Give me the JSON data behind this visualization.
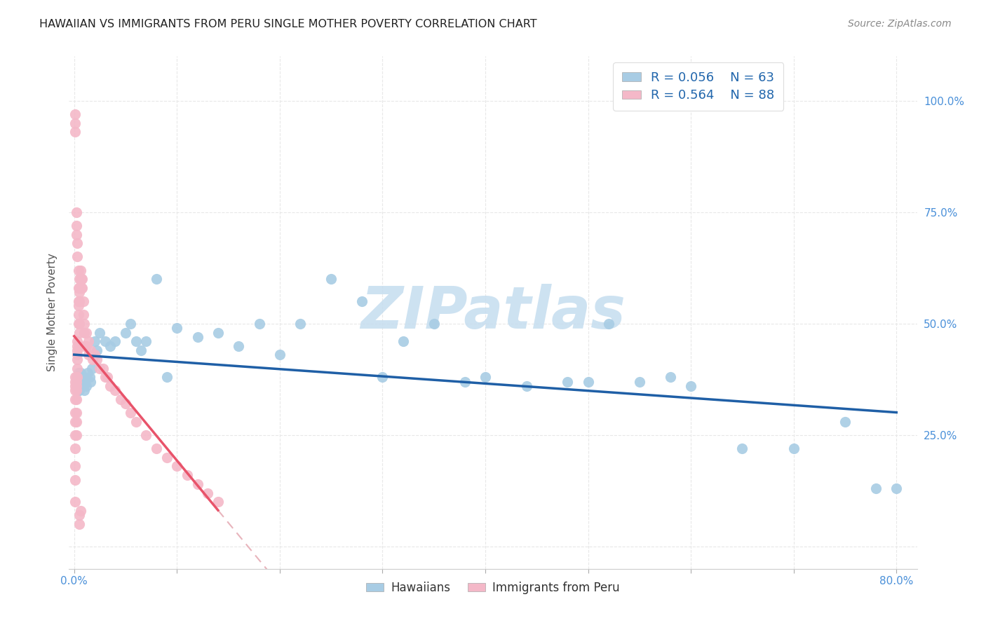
{
  "title": "HAWAIIAN VS IMMIGRANTS FROM PERU SINGLE MOTHER POVERTY CORRELATION CHART",
  "source": "Source: ZipAtlas.com",
  "ylabel": "Single Mother Poverty",
  "xlim": [
    -0.005,
    0.82
  ],
  "ylim": [
    -0.05,
    1.1
  ],
  "hawaiian_R": 0.056,
  "hawaiian_N": 63,
  "peru_R": 0.564,
  "peru_N": 88,
  "blue_scatter_color": "#a8cce4",
  "pink_scatter_color": "#f4b8c8",
  "blue_line_color": "#1f5fa6",
  "pink_line_color": "#e8536a",
  "pink_dash_color": "#e8b4bc",
  "watermark_color": "#c5ddef",
  "ytick_color": "#4a90d9",
  "xtick_color": "#4a90d9",
  "grid_color": "#e8e8e8",
  "hawaiian_x": [
    0.003,
    0.003,
    0.003,
    0.004,
    0.004,
    0.005,
    0.005,
    0.005,
    0.005,
    0.006,
    0.006,
    0.007,
    0.007,
    0.008,
    0.008,
    0.009,
    0.01,
    0.01,
    0.01,
    0.012,
    0.013,
    0.015,
    0.016,
    0.017,
    0.02,
    0.022,
    0.025,
    0.03,
    0.035,
    0.04,
    0.05,
    0.055,
    0.06,
    0.065,
    0.07,
    0.08,
    0.09,
    0.1,
    0.12,
    0.14,
    0.16,
    0.18,
    0.2,
    0.22,
    0.25,
    0.28,
    0.3,
    0.32,
    0.35,
    0.38,
    0.4,
    0.44,
    0.48,
    0.5,
    0.52,
    0.55,
    0.58,
    0.6,
    0.65,
    0.7,
    0.75,
    0.78,
    0.8
  ],
  "hawaiian_y": [
    0.38,
    0.37,
    0.36,
    0.39,
    0.35,
    0.38,
    0.36,
    0.37,
    0.35,
    0.38,
    0.39,
    0.37,
    0.36,
    0.38,
    0.37,
    0.36,
    0.38,
    0.37,
    0.35,
    0.36,
    0.39,
    0.38,
    0.37,
    0.4,
    0.46,
    0.44,
    0.48,
    0.46,
    0.45,
    0.46,
    0.48,
    0.5,
    0.46,
    0.44,
    0.46,
    0.6,
    0.38,
    0.49,
    0.47,
    0.48,
    0.45,
    0.5,
    0.43,
    0.5,
    0.6,
    0.55,
    0.38,
    0.46,
    0.5,
    0.37,
    0.38,
    0.36,
    0.37,
    0.37,
    0.5,
    0.37,
    0.38,
    0.36,
    0.22,
    0.22,
    0.28,
    0.13,
    0.13
  ],
  "peru_x": [
    0.001,
    0.001,
    0.001,
    0.001,
    0.001,
    0.001,
    0.001,
    0.001,
    0.001,
    0.001,
    0.001,
    0.001,
    0.002,
    0.002,
    0.002,
    0.002,
    0.002,
    0.002,
    0.002,
    0.002,
    0.003,
    0.003,
    0.003,
    0.003,
    0.003,
    0.003,
    0.003,
    0.004,
    0.004,
    0.004,
    0.004,
    0.005,
    0.005,
    0.005,
    0.005,
    0.005,
    0.005,
    0.006,
    0.006,
    0.006,
    0.007,
    0.007,
    0.008,
    0.008,
    0.009,
    0.009,
    0.01,
    0.01,
    0.01,
    0.012,
    0.012,
    0.014,
    0.014,
    0.016,
    0.018,
    0.02,
    0.022,
    0.025,
    0.028,
    0.03,
    0.032,
    0.035,
    0.04,
    0.045,
    0.05,
    0.055,
    0.06,
    0.07,
    0.08,
    0.09,
    0.1,
    0.11,
    0.12,
    0.13,
    0.14,
    0.001,
    0.001,
    0.001,
    0.002,
    0.002,
    0.002,
    0.003,
    0.003,
    0.004,
    0.004,
    0.005,
    0.005,
    0.006
  ],
  "peru_y": [
    0.35,
    0.36,
    0.37,
    0.38,
    0.33,
    0.3,
    0.28,
    0.25,
    0.22,
    0.18,
    0.15,
    0.1,
    0.38,
    0.37,
    0.36,
    0.35,
    0.33,
    0.3,
    0.28,
    0.25,
    0.46,
    0.45,
    0.44,
    0.43,
    0.42,
    0.4,
    0.38,
    0.55,
    0.54,
    0.52,
    0.5,
    0.6,
    0.58,
    0.57,
    0.55,
    0.5,
    0.48,
    0.62,
    0.6,
    0.58,
    0.6,
    0.58,
    0.6,
    0.58,
    0.55,
    0.52,
    0.5,
    0.48,
    0.45,
    0.48,
    0.45,
    0.46,
    0.43,
    0.44,
    0.42,
    0.43,
    0.42,
    0.4,
    0.4,
    0.38,
    0.38,
    0.36,
    0.35,
    0.33,
    0.32,
    0.3,
    0.28,
    0.25,
    0.22,
    0.2,
    0.18,
    0.16,
    0.14,
    0.12,
    0.1,
    0.97,
    0.95,
    0.93,
    0.75,
    0.72,
    0.7,
    0.68,
    0.65,
    0.62,
    0.58,
    0.05,
    0.07,
    0.08
  ]
}
